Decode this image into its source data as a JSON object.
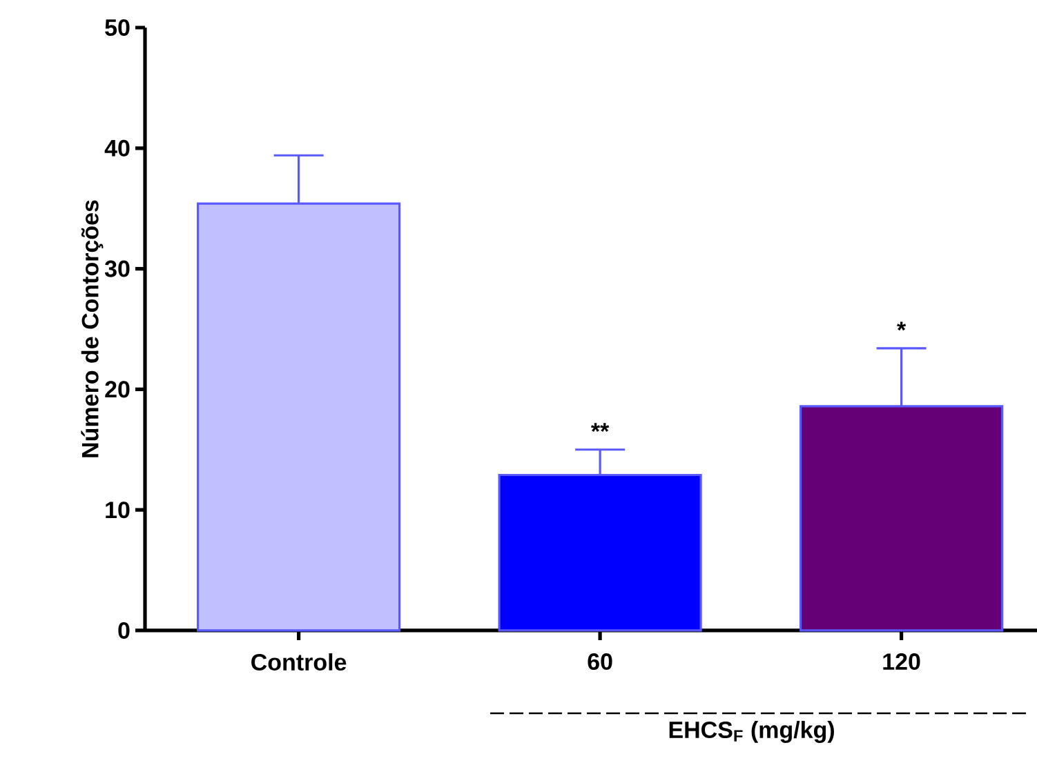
{
  "chart_data": {
    "type": "bar",
    "categories": [
      "Controle",
      "60",
      "120"
    ],
    "values": [
      35.4,
      12.9,
      18.6
    ],
    "colors": [
      "#c0c0ff",
      "#0000ff",
      "#660077"
    ],
    "errors": [
      [
        35.4,
        39.4
      ],
      [
        12.9,
        15.0
      ],
      [
        18.6,
        23.4
      ]
    ],
    "ylabel": "Número de Contorções",
    "xlabel": "EHCS$_{F}$ (mg/kg)",
    "ylim": [
      0,
      50
    ],
    "yticks": [
      0,
      10,
      20,
      30,
      40,
      50
    ],
    "annotations": [
      "**",
      "*"
    ],
    "grid": false
  }
}
